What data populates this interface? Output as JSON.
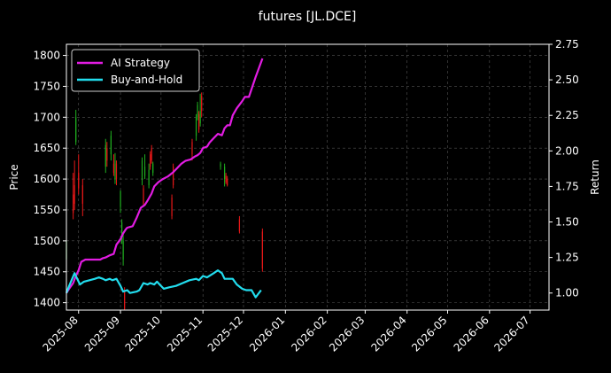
{
  "chart_data": {
    "type": "line",
    "title": "futures [JL.DCE]",
    "ylabel": "Price",
    "ylabel_right": "Return",
    "xlim": [
      "2025-07-23",
      "2026-07-15"
    ],
    "ylim": [
      1388,
      1818
    ],
    "ylim_right": [
      0.88,
      2.75
    ],
    "x_ticks": [
      "2025-08",
      "2025-09",
      "2025-10",
      "2025-11",
      "2025-12",
      "2026-01",
      "2026-02",
      "2026-03",
      "2026-04",
      "2026-05",
      "2026-06",
      "2026-07"
    ],
    "y_ticks": [
      1400,
      1450,
      1500,
      1550,
      1600,
      1650,
      1700,
      1750,
      1800
    ],
    "y_ticks_right": [
      1.0,
      1.25,
      1.5,
      1.75,
      2.0,
      2.25,
      2.5,
      2.75
    ],
    "grid": true,
    "legend_position": "top-left",
    "colors": {
      "background": "#000000",
      "up": "#1fae1f",
      "down": "#e81818",
      "ai": "#e21ce2",
      "bh": "#22ddee",
      "grid": "#555555"
    },
    "candles": [
      {
        "date": "2025-07-23",
        "open": 1470,
        "close": 1500,
        "low": 1462,
        "high": 1505
      },
      {
        "date": "2025-07-28",
        "open": 1575,
        "close": 1545,
        "low": 1535,
        "high": 1610
      },
      {
        "date": "2025-07-29",
        "open": 1590,
        "close": 1560,
        "low": 1550,
        "high": 1630
      },
      {
        "date": "2025-07-30",
        "open": 1660,
        "close": 1700,
        "low": 1655,
        "high": 1712
      },
      {
        "date": "2025-08-01",
        "open": 1610,
        "close": 1585,
        "low": 1575,
        "high": 1640
      },
      {
        "date": "2025-08-04",
        "open": 1590,
        "close": 1560,
        "low": 1540,
        "high": 1600
      },
      {
        "date": "2025-08-21",
        "open": 1620,
        "close": 1655,
        "low": 1610,
        "high": 1665
      },
      {
        "date": "2025-08-22",
        "open": 1650,
        "close": 1630,
        "low": 1620,
        "high": 1660
      },
      {
        "date": "2025-08-25",
        "open": 1640,
        "close": 1670,
        "low": 1630,
        "high": 1678
      },
      {
        "date": "2025-08-27",
        "open": 1625,
        "close": 1610,
        "low": 1605,
        "high": 1640
      },
      {
        "date": "2025-08-28",
        "open": 1600,
        "close": 1630,
        "low": 1592,
        "high": 1642
      },
      {
        "date": "2025-08-29",
        "open": 1625,
        "close": 1600,
        "low": 1590,
        "high": 1630
      },
      {
        "date": "2025-09-01",
        "open": 1555,
        "close": 1580,
        "low": 1545,
        "high": 1582
      },
      {
        "date": "2025-09-02",
        "open": 1500,
        "close": 1530,
        "low": 1495,
        "high": 1535
      },
      {
        "date": "2025-09-03",
        "open": 1470,
        "close": 1500,
        "low": 1460,
        "high": 1510
      },
      {
        "date": "2025-09-04",
        "open": 1420,
        "close": 1390,
        "low": 1388,
        "high": 1425
      },
      {
        "date": "2025-09-17",
        "open": 1600,
        "close": 1630,
        "low": 1590,
        "high": 1635
      },
      {
        "date": "2025-09-18",
        "open": 1585,
        "close": 1560,
        "low": 1555,
        "high": 1590
      },
      {
        "date": "2025-09-19",
        "open": 1605,
        "close": 1620,
        "low": 1600,
        "high": 1640
      },
      {
        "date": "2025-09-22",
        "open": 1590,
        "close": 1615,
        "low": 1585,
        "high": 1625
      },
      {
        "date": "2025-09-23",
        "open": 1640,
        "close": 1620,
        "low": 1615,
        "high": 1645
      },
      {
        "date": "2025-09-24",
        "open": 1650,
        "close": 1630,
        "low": 1625,
        "high": 1655
      },
      {
        "date": "2025-09-25",
        "open": 1610,
        "close": 1625,
        "low": 1605,
        "high": 1628
      },
      {
        "date": "2025-10-09",
        "open": 1570,
        "close": 1540,
        "low": 1535,
        "high": 1575
      },
      {
        "date": "2025-10-10",
        "open": 1620,
        "close": 1590,
        "low": 1585,
        "high": 1625
      },
      {
        "date": "2025-10-24",
        "open": 1660,
        "close": 1640,
        "low": 1630,
        "high": 1665
      },
      {
        "date": "2025-10-27",
        "open": 1670,
        "close": 1700,
        "low": 1662,
        "high": 1705
      },
      {
        "date": "2025-10-28",
        "open": 1700,
        "close": 1720,
        "low": 1695,
        "high": 1725
      },
      {
        "date": "2025-10-29",
        "open": 1705,
        "close": 1680,
        "low": 1675,
        "high": 1710
      },
      {
        "date": "2025-10-30",
        "open": 1690,
        "close": 1710,
        "low": 1685,
        "high": 1738
      },
      {
        "date": "2025-10-31",
        "open": 1735,
        "close": 1710,
        "low": 1700,
        "high": 1740
      },
      {
        "date": "2025-11-14",
        "open": 1620,
        "close": 1625,
        "low": 1615,
        "high": 1628
      },
      {
        "date": "2025-11-17",
        "open": 1600,
        "close": 1620,
        "low": 1588,
        "high": 1625
      },
      {
        "date": "2025-11-18",
        "open": 1605,
        "close": 1595,
        "low": 1592,
        "high": 1610
      },
      {
        "date": "2025-11-19",
        "open": 1600,
        "close": 1590,
        "low": 1588,
        "high": 1605
      },
      {
        "date": "2025-11-28",
        "open": 1535,
        "close": 1515,
        "low": 1512,
        "high": 1540
      },
      {
        "date": "2025-12-15",
        "open": 1515,
        "close": 1455,
        "low": 1450,
        "high": 1520
      }
    ],
    "series": [
      {
        "name": "AI Strategy",
        "axis": "right",
        "points": [
          [
            "2025-07-23",
            1.0
          ],
          [
            "2025-07-25",
            1.03
          ],
          [
            "2025-07-28",
            1.07
          ],
          [
            "2025-07-30",
            1.12
          ],
          [
            "2025-08-01",
            1.16
          ],
          [
            "2025-08-03",
            1.22
          ],
          [
            "2025-08-06",
            1.235
          ],
          [
            "2025-08-10",
            1.235
          ],
          [
            "2025-08-14",
            1.235
          ],
          [
            "2025-08-17",
            1.235
          ],
          [
            "2025-08-19",
            1.245
          ],
          [
            "2025-08-21",
            1.25
          ],
          [
            "2025-08-24",
            1.265
          ],
          [
            "2025-08-27",
            1.275
          ],
          [
            "2025-08-29",
            1.34
          ],
          [
            "2025-09-01",
            1.38
          ],
          [
            "2025-09-03",
            1.42
          ],
          [
            "2025-09-05",
            1.45
          ],
          [
            "2025-09-06",
            1.46
          ],
          [
            "2025-09-10",
            1.47
          ],
          [
            "2025-09-13",
            1.53
          ],
          [
            "2025-09-16",
            1.6
          ],
          [
            "2025-09-19",
            1.62
          ],
          [
            "2025-09-21",
            1.65
          ],
          [
            "2025-09-24",
            1.7
          ],
          [
            "2025-09-26",
            1.75
          ],
          [
            "2025-09-29",
            1.78
          ],
          [
            "2025-10-02",
            1.8
          ],
          [
            "2025-10-06",
            1.82
          ],
          [
            "2025-10-10",
            1.85
          ],
          [
            "2025-10-13",
            1.88
          ],
          [
            "2025-10-16",
            1.91
          ],
          [
            "2025-10-19",
            1.93
          ],
          [
            "2025-10-23",
            1.94
          ],
          [
            "2025-10-26",
            1.96
          ],
          [
            "2025-10-28",
            1.97
          ],
          [
            "2025-10-30",
            1.985
          ],
          [
            "2025-11-01",
            2.02
          ],
          [
            "2025-11-04",
            2.03
          ],
          [
            "2025-11-06",
            2.06
          ],
          [
            "2025-11-09",
            2.09
          ],
          [
            "2025-11-12",
            2.12
          ],
          [
            "2025-11-15",
            2.11
          ],
          [
            "2025-11-17",
            2.16
          ],
          [
            "2025-11-19",
            2.18
          ],
          [
            "2025-11-21",
            2.18
          ],
          [
            "2025-11-23",
            2.25
          ],
          [
            "2025-11-26",
            2.3
          ],
          [
            "2025-11-30",
            2.35
          ],
          [
            "2025-12-02",
            2.38
          ],
          [
            "2025-12-05",
            2.38
          ],
          [
            "2025-12-10",
            2.52
          ],
          [
            "2025-12-15",
            2.65
          ]
        ]
      },
      {
        "name": "Buy-and-Hold",
        "axis": "right",
        "points": [
          [
            "2025-07-23",
            1.0
          ],
          [
            "2025-07-25",
            1.05
          ],
          [
            "2025-07-29",
            1.14
          ],
          [
            "2025-07-31",
            1.1
          ],
          [
            "2025-08-02",
            1.06
          ],
          [
            "2025-08-05",
            1.08
          ],
          [
            "2025-08-09",
            1.09
          ],
          [
            "2025-08-13",
            1.1
          ],
          [
            "2025-08-16",
            1.11
          ],
          [
            "2025-08-19",
            1.1
          ],
          [
            "2025-08-21",
            1.09
          ],
          [
            "2025-08-24",
            1.1
          ],
          [
            "2025-08-26",
            1.09
          ],
          [
            "2025-08-29",
            1.1
          ],
          [
            "2025-09-01",
            1.05
          ],
          [
            "2025-09-03",
            1.01
          ],
          [
            "2025-09-06",
            1.02
          ],
          [
            "2025-09-08",
            1.0
          ],
          [
            "2025-09-13",
            1.01
          ],
          [
            "2025-09-15",
            1.02
          ],
          [
            "2025-09-18",
            1.07
          ],
          [
            "2025-09-21",
            1.06
          ],
          [
            "2025-09-23",
            1.07
          ],
          [
            "2025-09-26",
            1.06
          ],
          [
            "2025-09-28",
            1.08
          ],
          [
            "2025-09-30",
            1.06
          ],
          [
            "2025-10-03",
            1.03
          ],
          [
            "2025-10-07",
            1.04
          ],
          [
            "2025-10-12",
            1.05
          ],
          [
            "2025-10-17",
            1.07
          ],
          [
            "2025-10-22",
            1.09
          ],
          [
            "2025-10-27",
            1.1
          ],
          [
            "2025-10-29",
            1.09
          ],
          [
            "2025-11-01",
            1.12
          ],
          [
            "2025-11-04",
            1.11
          ],
          [
            "2025-11-09",
            1.14
          ],
          [
            "2025-11-12",
            1.16
          ],
          [
            "2025-11-15",
            1.14
          ],
          [
            "2025-11-17",
            1.1
          ],
          [
            "2025-11-20",
            1.1
          ],
          [
            "2025-11-23",
            1.1
          ],
          [
            "2025-11-26",
            1.06
          ],
          [
            "2025-11-30",
            1.03
          ],
          [
            "2025-12-03",
            1.02
          ],
          [
            "2025-12-07",
            1.02
          ],
          [
            "2025-12-10",
            0.97
          ],
          [
            "2025-12-14",
            1.02
          ]
        ]
      }
    ]
  }
}
